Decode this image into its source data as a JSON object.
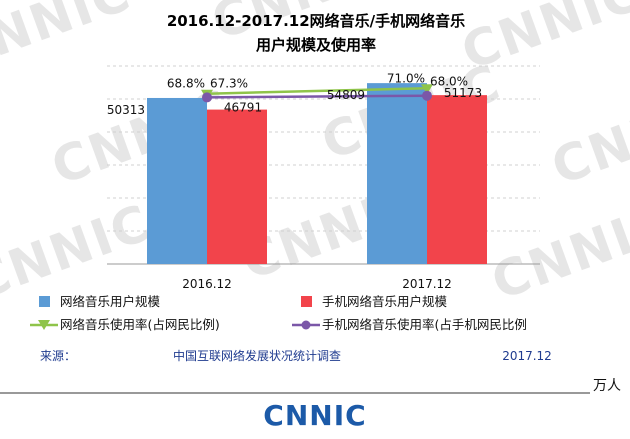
{
  "header": {
    "title_line1": "2016.12-2017.12网络音乐/手机网络音乐",
    "title_line2": "用户规模及使用率"
  },
  "chart_data": {
    "type": "bar",
    "categories": [
      "2016.12",
      "2017.12"
    ],
    "series": [
      {
        "name": "网络音乐用户规模",
        "kind": "bar",
        "color": "#5b9bd5",
        "values": [
          50313,
          54809
        ],
        "labels": [
          "50313",
          "54809"
        ]
      },
      {
        "name": "手机网络音乐用户规模",
        "kind": "bar",
        "color": "#f2444b",
        "values": [
          46791,
          51173
        ],
        "labels": [
          "46791",
          "51173"
        ]
      },
      {
        "name": "网络音乐使用率(占网民比例)",
        "kind": "line",
        "color": "#8fc44a",
        "values": [
          68.8,
          71.0
        ],
        "labels": [
          "68.8%",
          "71.0%"
        ]
      },
      {
        "name": "手机网络音乐使用率(占手机网民比例",
        "kind": "line",
        "color": "#7b57a8",
        "values": [
          67.3,
          68.0
        ],
        "labels": [
          "67.3%",
          "68.0%"
        ]
      }
    ],
    "bar_ylim": [
      0,
      60000
    ],
    "rate_ylim": [
      0,
      80
    ],
    "grid": true
  },
  "footer": {
    "source_label": "来源：",
    "source_name": "中国互联网络发展状况统计调查",
    "source_date": "2017.12",
    "unit": "万人",
    "logo": "CNNIC",
    "watermark": "CNNIC"
  }
}
